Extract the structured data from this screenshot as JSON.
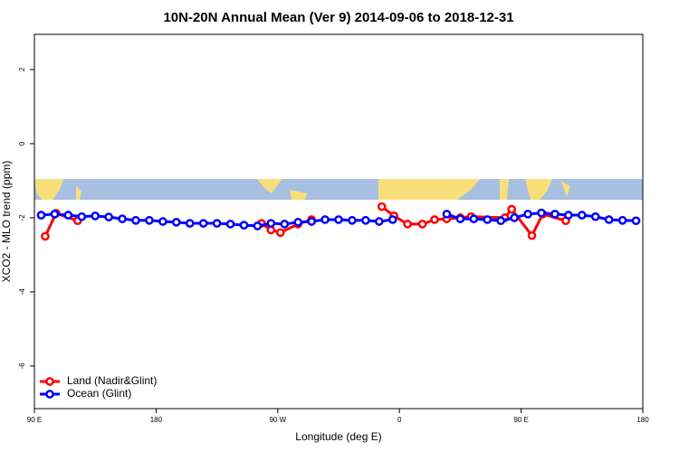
{
  "chart_data": {
    "type": "line",
    "title": "10N-20N Annual Mean (Ver 9)   2014-09-06 to 2018-12-31",
    "x_label": "Longitude (deg E)",
    "y_label": "XCO2 - MLO trend (ppm)",
    "xlim": [
      90,
      540
    ],
    "xticks": [
      {
        "value": 90,
        "label": "90 E"
      },
      {
        "value": 180,
        "label": "180"
      },
      {
        "value": 270,
        "label": "90 W"
      },
      {
        "value": 360,
        "label": "0"
      },
      {
        "value": 450,
        "label": "90 E"
      },
      {
        "value": 540,
        "label": "180"
      }
    ],
    "ylim": [
      -7.15,
      2.95
    ],
    "yticks": [
      -6,
      -4,
      -2,
      0,
      2
    ],
    "legend": "bottom-left",
    "series": [
      {
        "name": "Land (Nadir&Glint)",
        "color": "#ff0000",
        "x": [
          98,
          106,
          122,
          null,
          258,
          265,
          272,
          285,
          295,
          null,
          347,
          356,
          366,
          377,
          386,
          395,
          405,
          413,
          438,
          443,
          458,
          466,
          483
        ],
        "values": [
          -2.5,
          -1.88,
          -2.08,
          null,
          -2.15,
          -2.33,
          -2.4,
          -2.17,
          -2.05,
          null,
          -1.7,
          -1.95,
          -2.17,
          -2.17,
          -2.05,
          -2.03,
          -2.0,
          -1.97,
          -2.0,
          -1.77,
          -2.48,
          -1.9,
          -2.08
        ]
      },
      {
        "name": "Ocean (Glint)",
        "color": "#0000ff",
        "x": [
          95,
          105,
          115,
          125,
          135,
          145,
          155,
          165,
          175,
          185,
          195,
          205,
          215,
          225,
          235,
          245,
          255,
          265,
          275,
          285,
          295,
          305,
          315,
          325,
          335,
          345,
          355,
          null,
          395,
          405,
          415,
          425,
          435,
          445,
          455,
          465,
          475,
          485,
          495,
          505,
          515,
          525,
          535
        ],
        "values": [
          -1.93,
          -1.9,
          -1.93,
          -1.97,
          -1.95,
          -1.98,
          -2.03,
          -2.07,
          -2.07,
          -2.1,
          -2.12,
          -2.15,
          -2.15,
          -2.15,
          -2.17,
          -2.2,
          -2.22,
          -2.15,
          -2.17,
          -2.12,
          -2.1,
          -2.05,
          -2.05,
          -2.07,
          -2.07,
          -2.1,
          -2.05,
          null,
          -1.9,
          -2.03,
          -2.03,
          -2.05,
          -2.08,
          -2.0,
          -1.9,
          -1.87,
          -1.9,
          -1.93,
          -1.93,
          -1.97,
          -2.05,
          -2.07,
          -2.08
        ]
      }
    ]
  }
}
